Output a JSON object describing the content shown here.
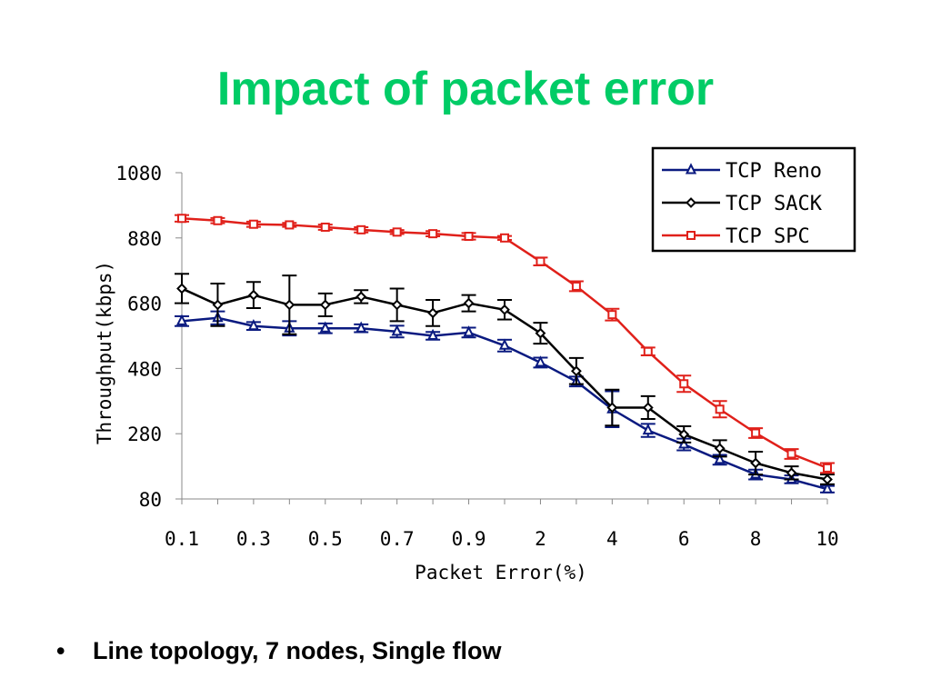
{
  "slide": {
    "title": "Impact of packet error",
    "title_color": "#00cc66",
    "bullet_marker": "•",
    "bullet": "Line topology, 7 nodes, Single flow"
  },
  "chart_data": {
    "type": "line",
    "xlabel": "Packet Error(%)",
    "ylabel": "Throughput(kbps)",
    "ylim": [
      80,
      1080
    ],
    "yticks": [
      80,
      280,
      480,
      680,
      880,
      1080
    ],
    "x": [
      "0.1",
      "0.2",
      "0.3",
      "0.4",
      "0.5",
      "0.6",
      "0.7",
      "0.8",
      "0.9",
      "1",
      "2",
      "3",
      "4",
      "5",
      "6",
      "7",
      "8",
      "9",
      "10"
    ],
    "x_tick_labels": [
      "0.1",
      "0.3",
      "0.5",
      "0.7",
      "0.9",
      "2",
      "4",
      "6",
      "8",
      "10"
    ],
    "legend": "top-right",
    "grid": false,
    "series": [
      {
        "name": "TCP Reno",
        "color": "#0a1a80",
        "marker": "triangle",
        "values": [
          625,
          635,
          610,
          603,
          603,
          603,
          593,
          580,
          590,
          550,
          498,
          440,
          355,
          290,
          247,
          200,
          155,
          140,
          110
        ],
        "errors": [
          15,
          20,
          12,
          22,
          15,
          12,
          18,
          12,
          15,
          18,
          15,
          15,
          55,
          20,
          18,
          15,
          15,
          12,
          10
        ]
      },
      {
        "name": "TCP SACK",
        "color": "#000000",
        "marker": "diamond",
        "values": [
          725,
          675,
          705,
          675,
          675,
          700,
          675,
          650,
          680,
          660,
          588,
          472,
          360,
          360,
          278,
          235,
          190,
          160,
          140
        ],
        "errors": [
          45,
          65,
          40,
          90,
          35,
          20,
          50,
          40,
          25,
          30,
          32,
          40,
          55,
          35,
          25,
          25,
          35,
          20,
          15
        ]
      },
      {
        "name": "TCP SPC",
        "color": "#e0201a",
        "marker": "square",
        "values": [
          940,
          933,
          922,
          920,
          913,
          905,
          898,
          893,
          885,
          880,
          808,
          732,
          645,
          532,
          433,
          355,
          282,
          218,
          175
        ],
        "errors": [
          10,
          8,
          8,
          6,
          8,
          8,
          6,
          8,
          10,
          6,
          12,
          15,
          18,
          12,
          25,
          25,
          15,
          15,
          15
        ]
      }
    ]
  }
}
